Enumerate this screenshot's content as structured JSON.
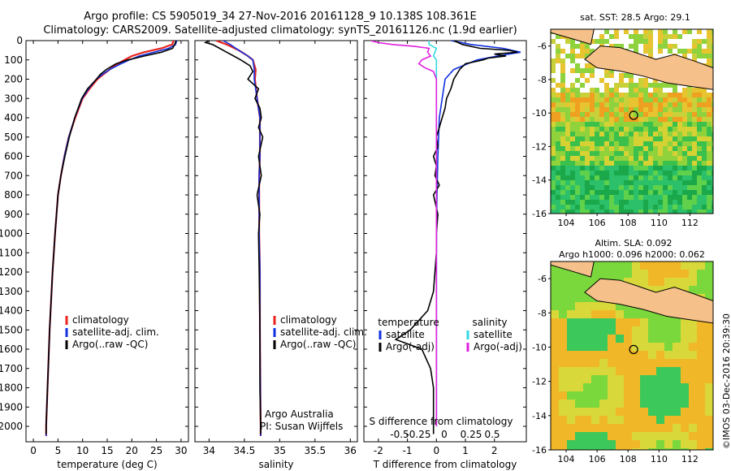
{
  "header": {
    "line1": "Argo profile: CS 5905019_34 27-Nov-2016 20161128_9 10.138S 108.361E",
    "line2": "Climatology: CARS2009. Satellite-adjusted climatology: synTS_20161126.nc (1.9d earlier)"
  },
  "colors": {
    "climatology": "#e8231f",
    "satellite": "#1030e0",
    "argo": "#000000",
    "sat_salinity": "#35d8e0",
    "argo_salinity": "#e020e0",
    "land": "#f5c08a"
  },
  "chart_data": [
    {
      "id": "temperature",
      "type": "line",
      "xlabel": "temperature (deg C)",
      "ylabel": "",
      "xlim": [
        -1.5,
        31.5
      ],
      "ylim": [
        2080,
        0
      ],
      "xticks": [
        "0",
        "5",
        "10",
        "15",
        "20",
        "25",
        "30"
      ],
      "xtick_values": [
        0,
        5,
        10,
        15,
        20,
        25,
        30
      ],
      "yticks": [
        "0",
        "100",
        "200",
        "300",
        "400",
        "500",
        "600",
        "700",
        "800",
        "900",
        "1000",
        "1100",
        "1200",
        "1300",
        "1400",
        "1500",
        "1600",
        "1700",
        "1800",
        "1900",
        "2000"
      ],
      "legend": [
        "climatology",
        "satellite-adj. clim.",
        "Argo(..raw -QC)"
      ],
      "series": [
        {
          "name": "climatology",
          "depth": [
            0,
            20,
            40,
            60,
            80,
            100,
            120,
            150,
            175,
            200,
            250,
            300,
            400,
            500,
            600,
            700,
            800,
            1000,
            1200,
            1500,
            2000,
            2050
          ],
          "values": [
            28.5,
            28.2,
            26,
            22.5,
            20,
            18.5,
            17.2,
            15.5,
            14.2,
            13,
            11.4,
            10,
            8.5,
            7.2,
            6.3,
            5.6,
            5.0,
            4.4,
            3.9,
            3.3,
            2.6,
            2.6
          ]
        },
        {
          "name": "satellite-adj. clim.",
          "depth": [
            0,
            20,
            40,
            60,
            80,
            100,
            120,
            150,
            175,
            200,
            250,
            300,
            400,
            500,
            600,
            700,
            800,
            1000,
            1200,
            1500,
            2000,
            2050
          ],
          "values": [
            29.1,
            28.9,
            27.5,
            24.5,
            21.5,
            19.5,
            17.8,
            15.5,
            14,
            12.8,
            11.2,
            9.9,
            8.4,
            7.2,
            6.3,
            5.6,
            5.0,
            4.4,
            3.9,
            3.3,
            2.6,
            2.6
          ]
        },
        {
          "name": "Argo(..raw -QC)",
          "depth": [
            0,
            20,
            40,
            60,
            80,
            100,
            120,
            150,
            175,
            200,
            250,
            300,
            400,
            500,
            600,
            700,
            800,
            1000,
            1200,
            1500,
            2000,
            2040
          ],
          "values": [
            29.0,
            28.7,
            28.3,
            26,
            22.5,
            19.2,
            16.8,
            14.8,
            13.6,
            12.8,
            11.0,
            9.8,
            8.4,
            7.3,
            6.4,
            5.6,
            5.0,
            4.4,
            3.9,
            3.3,
            2.6,
            2.6
          ]
        }
      ]
    },
    {
      "id": "salinity",
      "type": "line",
      "xlabel": "salinity",
      "xlim": [
        33.8,
        36.1
      ],
      "ylim": [
        2080,
        0
      ],
      "xticks": [
        "34",
        "34.5",
        "35",
        "35.5",
        "36"
      ],
      "xtick_values": [
        34,
        34.5,
        35,
        35.5,
        36
      ],
      "legend": [
        "climatology",
        "satellite-adj. clim.",
        "Argo(..raw -QC)"
      ],
      "annotation": [
        "Argo Australia",
        "PI: Susan Wijffels"
      ],
      "series": [
        {
          "name": "climatology",
          "depth": [
            0,
            20,
            50,
            80,
            100,
            150,
            200,
            300,
            400,
            500,
            600,
            700,
            800,
            1000,
            1200,
            1500,
            2000,
            2050
          ],
          "values": [
            34.1,
            34.25,
            34.42,
            34.55,
            34.62,
            34.66,
            34.65,
            34.68,
            34.72,
            34.72,
            34.72,
            34.71,
            34.71,
            34.71,
            34.72,
            34.72,
            34.73,
            34.73
          ]
        },
        {
          "name": "satellite-adj. clim.",
          "depth": [
            0,
            20,
            50,
            80,
            100,
            150,
            200,
            300,
            400,
            500,
            600,
            700,
            800,
            1000,
            1200,
            1500,
            2000,
            2050
          ],
          "values": [
            34.2,
            34.3,
            34.42,
            34.55,
            34.62,
            34.64,
            34.64,
            34.68,
            34.72,
            34.72,
            34.72,
            34.71,
            34.71,
            34.71,
            34.72,
            34.72,
            34.73,
            34.73
          ]
        },
        {
          "name": "Argo(..raw -QC)",
          "depth": [
            0,
            10,
            20,
            40,
            60,
            80,
            100,
            130,
            160,
            200,
            250,
            300,
            350,
            400,
            450,
            500,
            600,
            700,
            800,
            900,
            1000,
            1200,
            1500,
            1800,
            2000,
            2040
          ],
          "values": [
            34.0,
            33.95,
            34.05,
            34.15,
            34.25,
            34.35,
            34.45,
            34.58,
            34.62,
            34.55,
            34.7,
            34.65,
            34.72,
            34.74,
            34.7,
            34.76,
            34.7,
            34.74,
            34.68,
            34.72,
            34.7,
            34.71,
            34.72,
            34.72,
            34.73,
            34.73
          ]
        }
      ]
    },
    {
      "id": "difference",
      "type": "line",
      "xlabel": "T difference from climatology",
      "xlabel_top": "S difference from climatology",
      "xlim": [
        -2.5,
        3.1
      ],
      "ylim": [
        2080,
        0
      ],
      "xticks": [
        "-2",
        "-1",
        "0",
        "1",
        "2"
      ],
      "xtick_values": [
        -2,
        -1,
        0,
        1,
        2
      ],
      "s_ticks": [
        "-0.5",
        "-0.25",
        "0",
        "0.25",
        "0.5"
      ],
      "legend_headers": [
        "temperature",
        "salinity"
      ],
      "legend": [
        "satellite",
        "Argo(-adj)",
        "satellite",
        "Argo(-adj)"
      ],
      "series": [
        {
          "name": "T satellite",
          "depth": [
            0,
            20,
            40,
            60,
            80,
            100,
            150,
            200,
            300,
            400,
            600,
            800,
            1000,
            1500,
            2000
          ],
          "values": [
            0.5,
            1.2,
            2.3,
            2.9,
            2.1,
            1.4,
            0.6,
            0.3,
            0.2,
            0.1,
            0.05,
            0.02,
            0,
            0,
            0
          ]
        },
        {
          "name": "T Argo(-adj)",
          "depth": [
            0,
            20,
            40,
            50,
            60,
            70,
            80,
            90,
            100,
            120,
            150,
            200,
            250,
            300,
            350,
            400,
            450,
            500,
            550,
            600,
            650,
            700,
            750,
            800,
            900,
            1000,
            1100,
            1200,
            1300,
            1400,
            1500,
            1550,
            1600,
            1700,
            1800,
            1900,
            2000,
            2040
          ],
          "values": [
            0.6,
            0.9,
            1.5,
            2.5,
            2.8,
            2.0,
            2.4,
            1.8,
            1.6,
            1.0,
            0.8,
            0.6,
            0.5,
            0.35,
            0.3,
            0.2,
            0.1,
            0.0,
            0.05,
            -0.1,
            0.0,
            -0.05,
            0.1,
            -0.1,
            0.05,
            0.0,
            0.0,
            -0.05,
            -0.1,
            -0.3,
            -0.9,
            -1.4,
            -0.5,
            -0.2,
            -0.1,
            -0.1,
            -0.1,
            -0.1
          ]
        },
        {
          "name": "S satellite",
          "depth": [
            0,
            20,
            40,
            60,
            80,
            100,
            200,
            400,
            800,
            1500,
            2000
          ],
          "values": [
            -0.05,
            -0.05,
            0.0,
            -0.01,
            -0.02,
            0.0,
            0.0,
            0.0,
            0.0,
            0.0,
            0.0
          ]
        },
        {
          "name": "S Argo(-adj)",
          "depth": [
            0,
            10,
            20,
            30,
            40,
            60,
            80,
            100,
            120,
            140,
            160,
            200,
            300,
            400,
            600,
            800,
            1000,
            1500,
            2000
          ],
          "values": [
            -0.45,
            -0.4,
            -0.3,
            -0.15,
            -0.05,
            -0.06,
            -0.04,
            -0.1,
            -0.12,
            -0.08,
            -0.02,
            0.0,
            0.0,
            0.0,
            0.0,
            0.0,
            0.0,
            0.0,
            0.0
          ]
        }
      ]
    },
    {
      "id": "sst_map",
      "type": "heatmap",
      "title": "sat. SST: 28.5  Argo: 29.1",
      "xlim": [
        103,
        113.5
      ],
      "ylim": [
        -16,
        -5
      ],
      "xticks": [
        "104",
        "106",
        "108",
        "110",
        "112"
      ],
      "xtick_values": [
        104,
        106,
        108,
        110,
        112
      ],
      "yticks": [
        "-6",
        "-8",
        "-10",
        "-12",
        "-14",
        "-16"
      ],
      "ytick_values": [
        -6,
        -8,
        -10,
        -12,
        -14,
        -16
      ],
      "marker": {
        "lon": 108.361,
        "lat": -10.138
      }
    },
    {
      "id": "sla_map",
      "type": "heatmap",
      "title": [
        "Altim. SLA: 0.092",
        "Argo h1000: 0.096  h2000: 0.062"
      ],
      "xlim": [
        103,
        113.5
      ],
      "ylim": [
        -16,
        -5
      ],
      "xticks": [
        "104",
        "106",
        "108",
        "110",
        "112"
      ],
      "xtick_values": [
        104,
        106,
        108,
        110,
        112
      ],
      "yticks": [
        "-6",
        "-8",
        "-10",
        "-12",
        "-14",
        "-16"
      ],
      "ytick_values": [
        -6,
        -8,
        -10,
        -12,
        -14,
        -16
      ],
      "marker": {
        "lon": 108.361,
        "lat": -10.138
      }
    }
  ],
  "footer": {
    "stamp": "©IMOS 03-Dec-2016 20:39:30"
  }
}
